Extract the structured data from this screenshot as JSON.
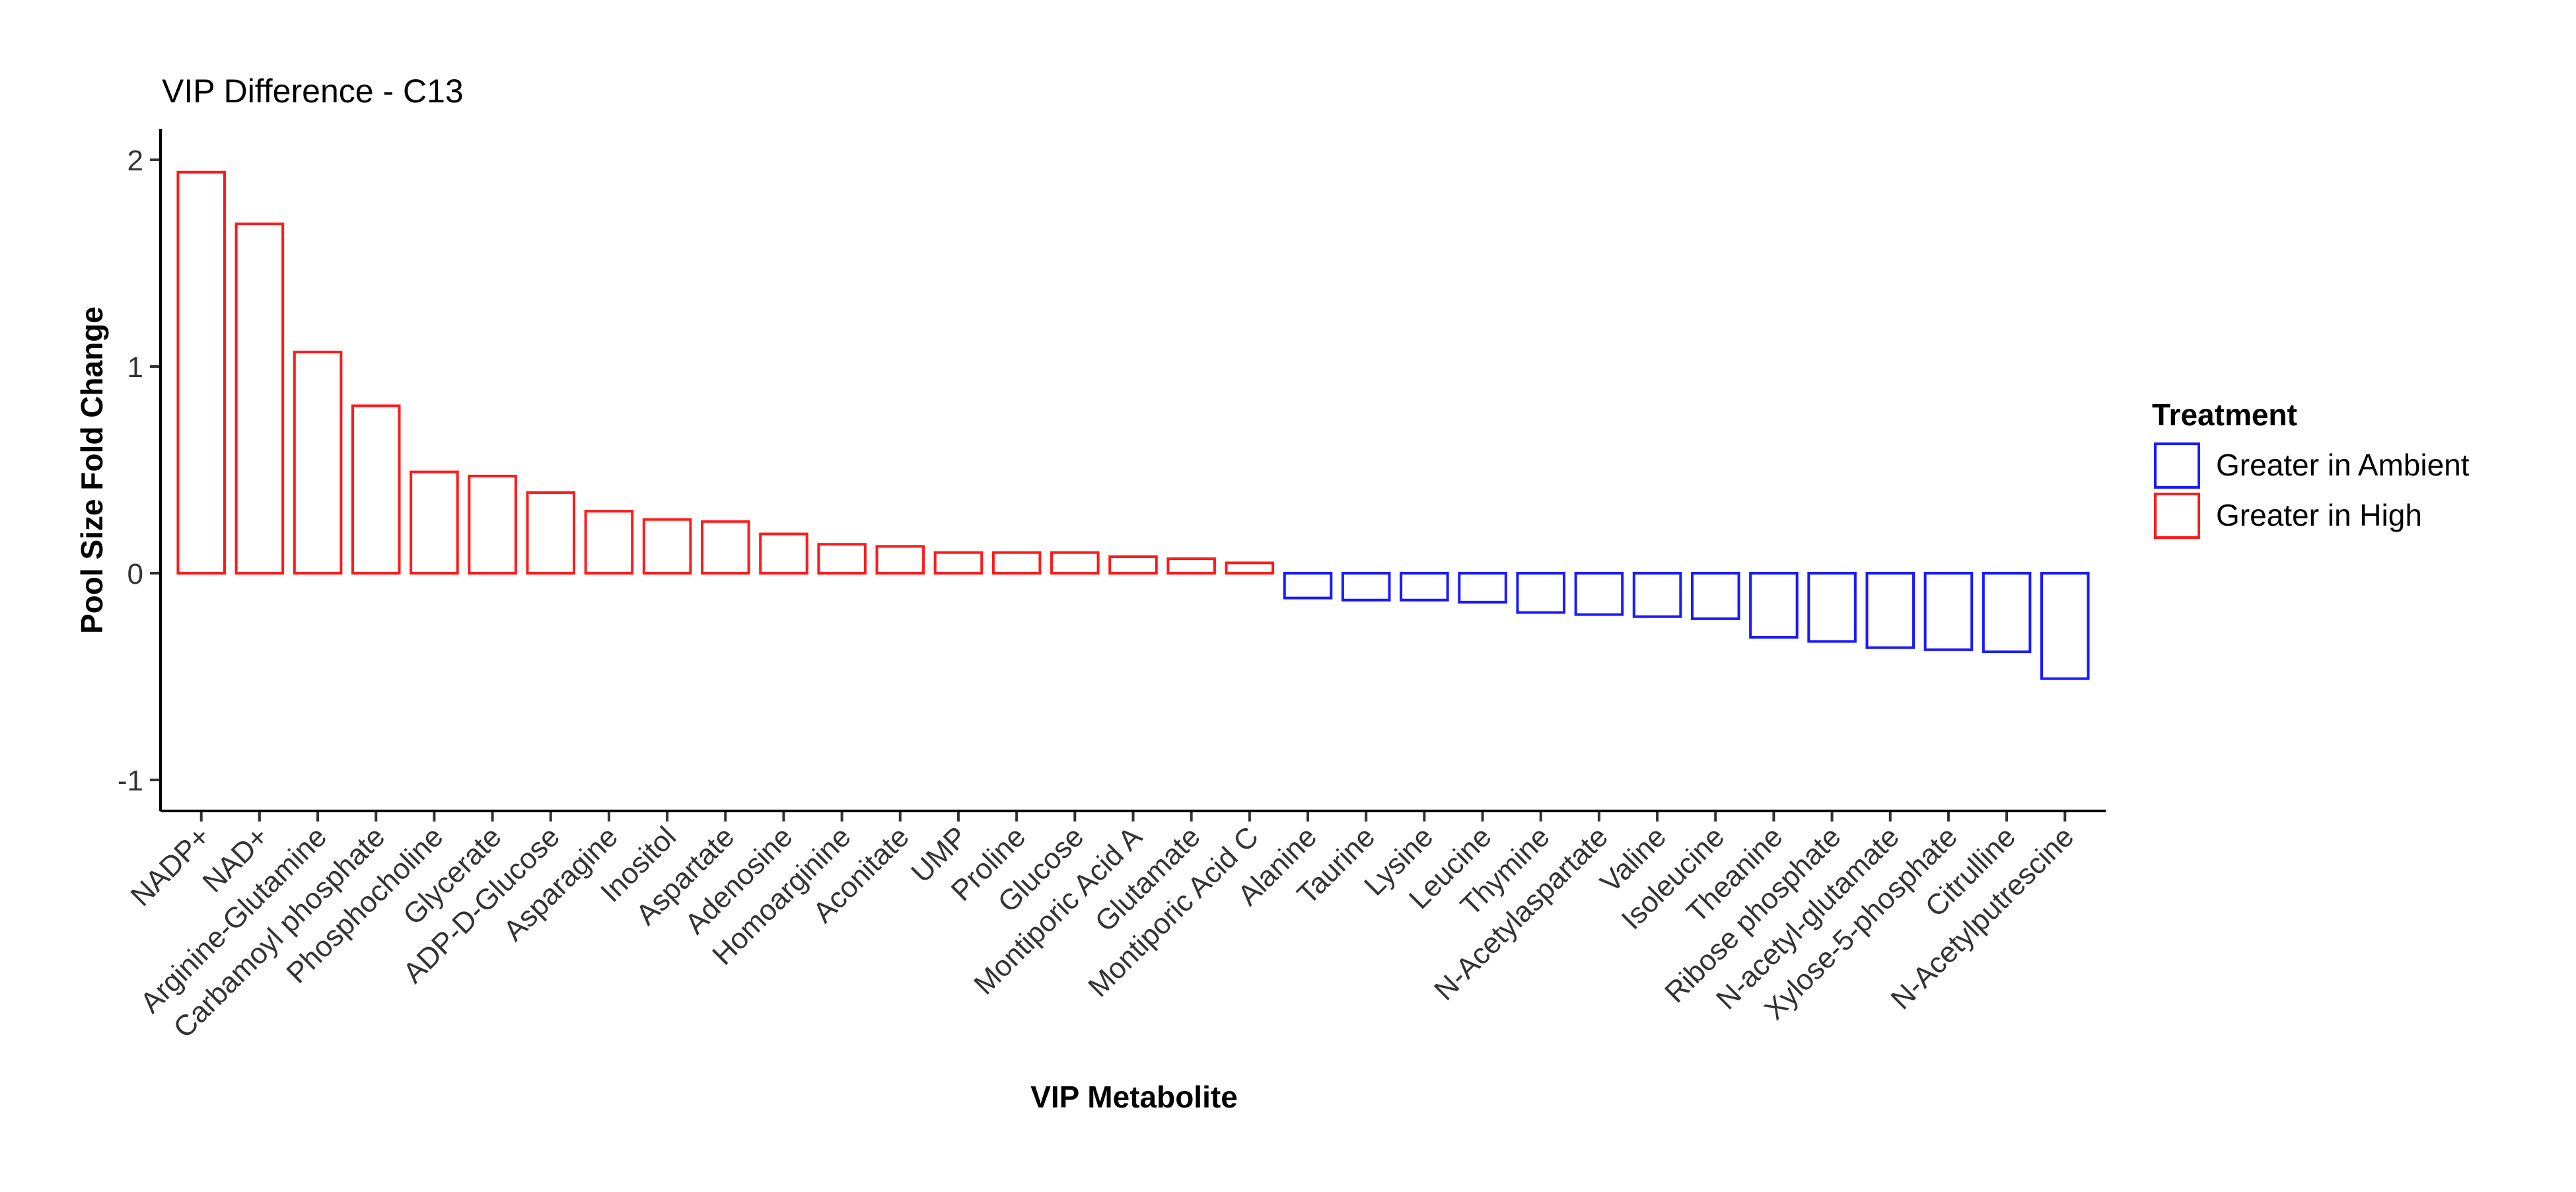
{
  "chart_data": {
    "type": "bar",
    "title": "VIP Difference - C13",
    "xlabel": "VIP Metabolite",
    "ylabel": "Pool Size Fold Change",
    "ylim": [
      -1.15,
      2.15
    ],
    "yticks": [
      -1,
      0,
      1,
      2
    ],
    "grid": false,
    "legend": {
      "title": "Treatment",
      "position": "right",
      "entries": [
        {
          "label": "Greater in Ambient",
          "color": "#1a1aff"
        },
        {
          "label": "Greater in High",
          "color": "#ff1a1a"
        }
      ]
    },
    "categories": [
      "NADP+",
      "NAD+",
      "Arginine-Glutamine",
      "Carbamoyl phosphate",
      "Phosphocholine",
      "Glycerate",
      "ADP-D-Glucose",
      "Asparagine",
      "Inositol",
      "Aspartate",
      "Adenosine",
      "Homoarginine",
      "Aconitate",
      "UMP",
      "Proline",
      "Glucose",
      "Montiporic Acid A",
      "Glutamate",
      "Montiporic Acid C",
      "Alanine",
      "Taurine",
      "Lysine",
      "Leucine",
      "Thymine",
      "N-Acetylaspartate",
      "Valine",
      "Isoleucine",
      "Theanine",
      "Ribose phosphate",
      "N-acetyl-glutamate",
      "Xylose-5-phosphate",
      "Citrulline",
      "N-Acetylputrescine"
    ],
    "values": [
      1.94,
      1.69,
      1.07,
      0.81,
      0.49,
      0.47,
      0.39,
      0.3,
      0.26,
      0.25,
      0.19,
      0.14,
      0.13,
      0.1,
      0.1,
      0.1,
      0.08,
      0.07,
      0.05,
      -0.12,
      -0.13,
      -0.13,
      -0.14,
      -0.19,
      -0.2,
      -0.21,
      -0.22,
      -0.31,
      -0.33,
      -0.36,
      -0.37,
      -0.38,
      -0.51
    ],
    "treatment": [
      "Greater in High",
      "Greater in High",
      "Greater in High",
      "Greater in High",
      "Greater in High",
      "Greater in High",
      "Greater in High",
      "Greater in High",
      "Greater in High",
      "Greater in High",
      "Greater in High",
      "Greater in High",
      "Greater in High",
      "Greater in High",
      "Greater in High",
      "Greater in High",
      "Greater in High",
      "Greater in High",
      "Greater in High",
      "Greater in Ambient",
      "Greater in Ambient",
      "Greater in Ambient",
      "Greater in Ambient",
      "Greater in Ambient",
      "Greater in Ambient",
      "Greater in Ambient",
      "Greater in Ambient",
      "Greater in Ambient",
      "Greater in Ambient",
      "Greater in Ambient",
      "Greater in Ambient",
      "Greater in Ambient",
      "Greater in Ambient"
    ]
  }
}
